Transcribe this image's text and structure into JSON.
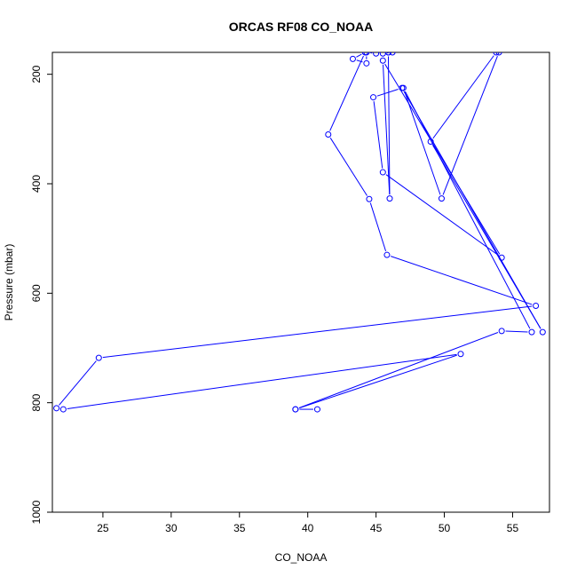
{
  "chart_data": {
    "type": "line",
    "title": "ORCAS RF08 CO_NOAA",
    "xlabel": "CO_NOAA",
    "ylabel": "Pressure (mbar)",
    "xlim": [
      21.3,
      57.7
    ],
    "ylim": [
      1000,
      160
    ],
    "y_inverted": true,
    "x_ticks": [
      25,
      30,
      35,
      40,
      45,
      50,
      55
    ],
    "y_ticks": [
      200,
      400,
      600,
      800,
      1000
    ],
    "grid": false,
    "series_color": "#0000ff",
    "series": [
      {
        "x": [
          40.7,
          39.1,
          51.2,
          22.1,
          21.6,
          24.7,
          56.7,
          45.8,
          44.5,
          41.5,
          44.2,
          43.3,
          44.3,
          44.3,
          45.0,
          45.5,
          46.2,
          45.9,
          45.9,
          46.0,
          45.5,
          54.2,
          45.5,
          44.8,
          46.9,
          57.2,
          49.0,
          53.8,
          54.0,
          49.8,
          47.0,
          56.4,
          54.2,
          39.1
        ],
        "y": [
          812,
          812,
          711,
          812,
          810,
          718,
          623,
          530,
          428,
          310,
          160,
          172,
          180,
          160,
          162,
          162,
          160,
          160,
          160,
          427,
          175,
          535,
          379,
          242,
          225,
          671,
          323,
          160,
          160,
          427,
          225,
          671,
          669,
          812
        ]
      }
    ]
  }
}
